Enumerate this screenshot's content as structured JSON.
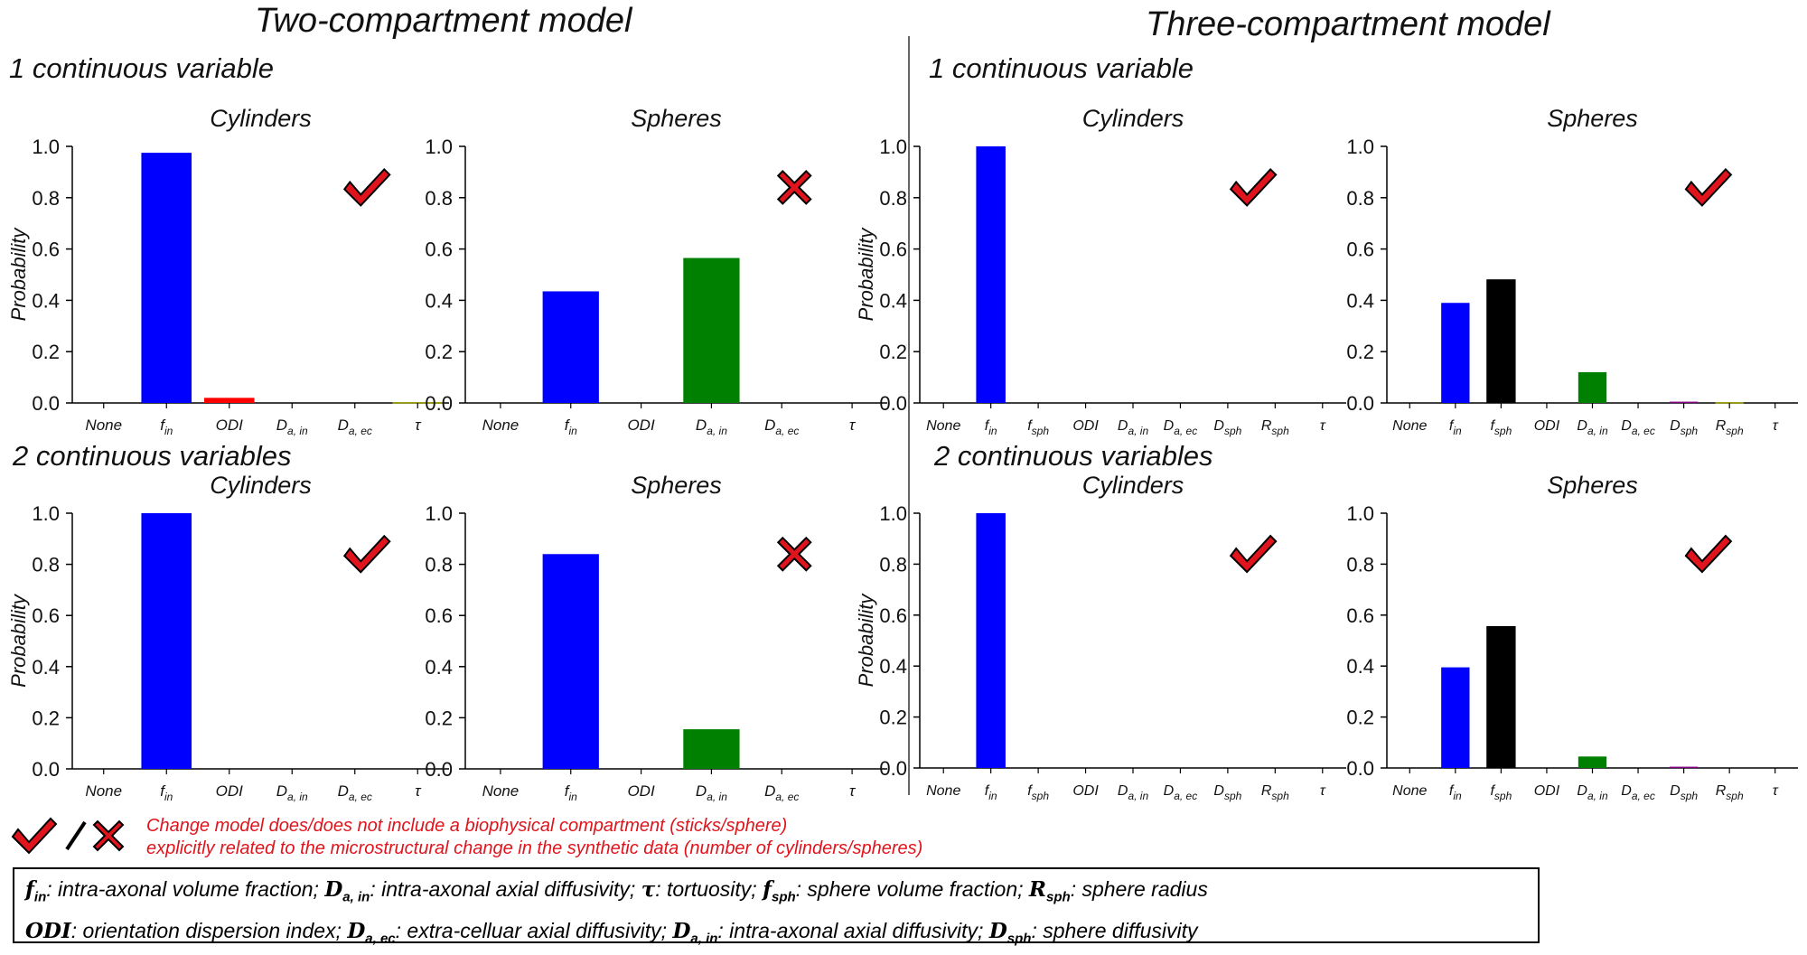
{
  "headings": {
    "two_compartment": "Two-compartment model",
    "three_compartment": "Three-compartment model",
    "one_var_left": "1 continuous variable",
    "two_var_left": "2 continuous variables",
    "one_var_right": "1 continuous variable",
    "two_var_right": "2 continuous variables"
  },
  "colors": {
    "blue": "#0000ff",
    "red": "#ff0000",
    "green": "#008000",
    "black": "#000000",
    "purple": "#800080",
    "olive": "#a0a000",
    "marker_red": "#e0141c"
  },
  "chart_data": [
    {
      "type": "bar",
      "title": "Cylinders",
      "ylabel": "Probability",
      "ylim": [
        0,
        1.0
      ],
      "yticks": [
        "0.0",
        "0.2",
        "0.4",
        "0.6",
        "0.8",
        "1.0"
      ],
      "categories": [
        "None",
        "f_in",
        "ODI",
        "D_a,in",
        "D_a,ec",
        "τ"
      ],
      "values": [
        0,
        0.975,
        0.02,
        0,
        0,
        0.003
      ],
      "bar_colors": [
        "#0000ff",
        "#0000ff",
        "#ff0000",
        "#008000",
        "#000000",
        "#a0a000"
      ],
      "marker": "check"
    },
    {
      "type": "bar",
      "title": "Spheres",
      "ylabel": "",
      "ylim": [
        0,
        1.0
      ],
      "yticks": [
        "0.0",
        "0.2",
        "0.4",
        "0.6",
        "0.8",
        "1.0"
      ],
      "categories": [
        "None",
        "f_in",
        "ODI",
        "D_a,in",
        "D_a,ec",
        "τ"
      ],
      "values": [
        0,
        0.435,
        0,
        0.565,
        0,
        0
      ],
      "bar_colors": [
        "#0000ff",
        "#0000ff",
        "#ff0000",
        "#008000",
        "#000000",
        "#a0a000"
      ],
      "marker": "cross"
    },
    {
      "type": "bar",
      "title": "Cylinders",
      "ylabel": "Probability",
      "ylim": [
        0,
        1.0
      ],
      "yticks": [
        "0.0",
        "0.2",
        "0.4",
        "0.6",
        "0.8",
        "1.0"
      ],
      "categories": [
        "None",
        "f_in",
        "f_sph",
        "ODI",
        "D_a,in",
        "D_a,ec",
        "D_sph",
        "R_sph",
        "τ"
      ],
      "values": [
        0,
        1.0,
        0,
        0,
        0,
        0,
        0,
        0,
        0
      ],
      "bar_colors": [
        "#0000ff",
        "#0000ff",
        "#000000",
        "#ff0000",
        "#008000",
        "#000000",
        "#800080",
        "#a0a000",
        "#a0a000"
      ],
      "marker": "check"
    },
    {
      "type": "bar",
      "title": "Spheres",
      "ylabel": "",
      "ylim": [
        0,
        1.0
      ],
      "yticks": [
        "0.0",
        "0.2",
        "0.4",
        "0.6",
        "0.8",
        "1.0"
      ],
      "categories": [
        "None",
        "f_in",
        "f_sph",
        "ODI",
        "D_a,in",
        "D_a,ec",
        "D_sph",
        "R_sph",
        "τ"
      ],
      "values": [
        0,
        0.39,
        0.48,
        0,
        0.12,
        0,
        0.005,
        0.003,
        0
      ],
      "bar_colors": [
        "#0000ff",
        "#0000ff",
        "#000000",
        "#ff0000",
        "#008000",
        "#000000",
        "#800080",
        "#a0a000",
        "#a0a000"
      ],
      "marker": "check"
    },
    {
      "type": "bar",
      "title": "Cylinders",
      "ylabel": "Probability",
      "ylim": [
        0,
        1.0
      ],
      "yticks": [
        "0.0",
        "0.2",
        "0.4",
        "0.6",
        "0.8",
        "1.0"
      ],
      "categories": [
        "None",
        "f_in",
        "ODI",
        "D_a,in",
        "D_a,ec",
        "τ"
      ],
      "values": [
        0,
        1.0,
        0,
        0,
        0,
        0
      ],
      "bar_colors": [
        "#0000ff",
        "#0000ff",
        "#ff0000",
        "#008000",
        "#000000",
        "#a0a000"
      ],
      "marker": "check"
    },
    {
      "type": "bar",
      "title": "Spheres",
      "ylabel": "",
      "ylim": [
        0,
        1.0
      ],
      "yticks": [
        "0.0",
        "0.2",
        "0.4",
        "0.6",
        "0.8",
        "1.0"
      ],
      "categories": [
        "None",
        "f_in",
        "ODI",
        "D_a,in",
        "D_a,ec",
        "τ"
      ],
      "values": [
        0,
        0.84,
        0,
        0.155,
        0,
        0
      ],
      "bar_colors": [
        "#0000ff",
        "#0000ff",
        "#ff0000",
        "#008000",
        "#000000",
        "#a0a000"
      ],
      "marker": "cross"
    },
    {
      "type": "bar",
      "title": "Cylinders",
      "ylabel": "Probability",
      "ylim": [
        0,
        1.0
      ],
      "yticks": [
        "0.0",
        "0.2",
        "0.4",
        "0.6",
        "0.8",
        "1.0"
      ],
      "categories": [
        "None",
        "f_in",
        "f_sph",
        "ODI",
        "D_a,in",
        "D_a,ec",
        "D_sph",
        "R_sph",
        "τ"
      ],
      "values": [
        0,
        1.0,
        0,
        0,
        0,
        0,
        0,
        0,
        0
      ],
      "bar_colors": [
        "#0000ff",
        "#0000ff",
        "#000000",
        "#ff0000",
        "#008000",
        "#000000",
        "#800080",
        "#a0a000",
        "#a0a000"
      ],
      "marker": "check"
    },
    {
      "type": "bar",
      "title": "Spheres",
      "ylabel": "",
      "ylim": [
        0,
        1.0
      ],
      "yticks": [
        "0.0",
        "0.2",
        "0.4",
        "0.6",
        "0.8",
        "1.0"
      ],
      "categories": [
        "None",
        "f_in",
        "f_sph",
        "ODI",
        "D_a,in",
        "D_a,ec",
        "D_sph",
        "R_sph",
        "τ"
      ],
      "values": [
        0,
        0.395,
        0.555,
        0,
        0.045,
        0,
        0.005,
        0,
        0
      ],
      "bar_colors": [
        "#0000ff",
        "#0000ff",
        "#000000",
        "#ff0000",
        "#008000",
        "#000000",
        "#800080",
        "#a0a000",
        "#a0a000"
      ],
      "marker": "check"
    }
  ],
  "legend": {
    "line1": "Change model does/does not include a biophysical compartment (sticks/sphere)",
    "line2": "explicitly related to the microstructural change in the synthetic data (number of cylinders/spheres)"
  },
  "definitions": {
    "line1": [
      {
        "sym": "f",
        "sub": "in",
        "text": ": intra-axonal volume fraction; "
      },
      {
        "sym": "D",
        "sub": "a, in",
        "text": ": intra-axonal axial diffusivity; "
      },
      {
        "sym": "τ",
        "sub": "",
        "text": ": tortuosity; "
      },
      {
        "sym": "f",
        "sub": "sph",
        "text": ": sphere volume fraction; "
      },
      {
        "sym": "R",
        "sub": "sph",
        "text": ": sphere radius"
      }
    ],
    "line2": [
      {
        "sym": "ODI",
        "sub": "",
        "text": ": orientation dispersion index; "
      },
      {
        "sym": "D",
        "sub": "a, ec",
        "text": ": extra-celluar axial diffusivity; "
      },
      {
        "sym": "D",
        "sub": "a, in",
        "text": ": intra-axonal axial diffusivity; "
      },
      {
        "sym": "D",
        "sub": "sph",
        "text": ": sphere diffusivity"
      }
    ]
  }
}
